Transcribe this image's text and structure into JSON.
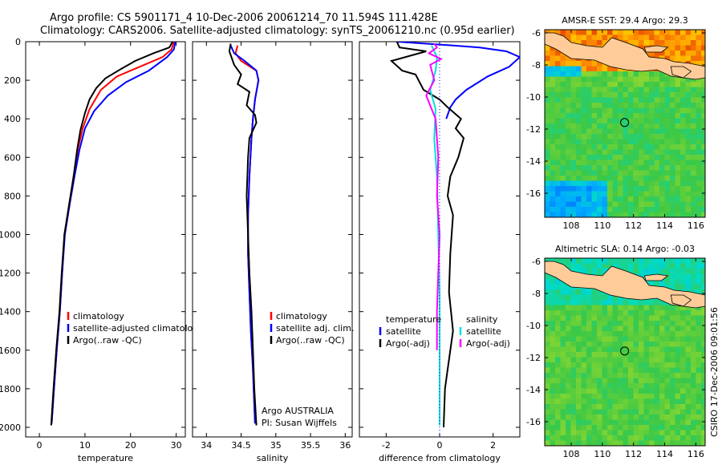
{
  "header": {
    "line1": "Argo profile: CS 5901171_4 10-Dec-2006 20061214_70 11.594S 111.428E",
    "line2": "Climatology: CARS2006. Satellite-adjusted climatology: synTS_20061210.nc (0.95d earlier)"
  },
  "colors": {
    "climatology": "#ff0000",
    "satellite": "#0000ff",
    "argo": "#000000",
    "salinity_satellite": "#00e0e0",
    "salinity_argo": "#ff00ff"
  },
  "chart_data": [
    {
      "id": "temperature",
      "type": "line",
      "xlabel": "temperature",
      "xlim": [
        -3,
        32
      ],
      "ylim": [
        0,
        2050
      ],
      "y_inverted": true,
      "xticks": [
        0,
        10,
        20,
        30
      ],
      "yticks": [
        0,
        200,
        400,
        600,
        800,
        1000,
        1200,
        1400,
        1600,
        1800,
        2000
      ],
      "series": [
        {
          "name": "climatology",
          "color": "#ff0000",
          "points": [
            [
              29.5,
              0
            ],
            [
              29,
              40
            ],
            [
              27,
              80
            ],
            [
              22,
              130
            ],
            [
              17,
              180
            ],
            [
              13.5,
              250
            ],
            [
              11,
              350
            ],
            [
              9.5,
              450
            ],
            [
              8.5,
              550
            ],
            [
              7.5,
              700
            ],
            [
              6.5,
              850
            ],
            [
              5.5,
              1000
            ],
            [
              5,
              1200
            ],
            [
              4.5,
              1400
            ],
            [
              3.8,
              1600
            ],
            [
              3.2,
              1800
            ],
            [
              2.7,
              1980
            ]
          ]
        },
        {
          "name": "satellite-adjusted climatology",
          "color": "#0000ff",
          "points": [
            [
              29.8,
              0
            ],
            [
              29.5,
              40
            ],
            [
              28,
              80
            ],
            [
              24,
              150
            ],
            [
              19,
              210
            ],
            [
              15,
              280
            ],
            [
              12,
              360
            ],
            [
              10,
              450
            ],
            [
              8.8,
              560
            ],
            [
              7.7,
              700
            ],
            [
              6.6,
              850
            ],
            [
              5.6,
              1000
            ],
            [
              5,
              1200
            ],
            [
              4.5,
              1400
            ],
            [
              3.8,
              1600
            ],
            [
              3.2,
              1800
            ],
            [
              2.7,
              1980
            ]
          ]
        },
        {
          "name": "Argo(..raw -QC)",
          "color": "#000000",
          "points": [
            [
              29.2,
              0
            ],
            [
              28.5,
              30
            ],
            [
              25,
              60
            ],
            [
              21,
              100
            ],
            [
              18,
              140
            ],
            [
              14.5,
              190
            ],
            [
              12.5,
              240
            ],
            [
              11,
              300
            ],
            [
              10,
              370
            ],
            [
              9,
              460
            ],
            [
              8.3,
              560
            ],
            [
              7.5,
              700
            ],
            [
              6.5,
              850
            ],
            [
              5.5,
              1000
            ],
            [
              4.9,
              1200
            ],
            [
              4.4,
              1400
            ],
            [
              3.7,
              1600
            ],
            [
              3.1,
              1800
            ],
            [
              2.6,
              1990
            ]
          ]
        }
      ],
      "legend": {
        "position": "lower-right",
        "entries": [
          "climatology",
          "satellite-adjusted climatology",
          "Argo(..raw -QC)"
        ]
      }
    },
    {
      "id": "salinity",
      "type": "line",
      "xlabel": "salinity",
      "xlim": [
        33.8,
        36.1
      ],
      "ylim": [
        0,
        2050
      ],
      "y_inverted": true,
      "xticks": [
        34,
        34.5,
        35,
        35.5,
        36
      ],
      "series": [
        {
          "name": "climatology",
          "color": "#ff0000",
          "points": [
            [
              34.45,
              20
            ],
            [
              34.42,
              60
            ],
            [
              34.5,
              100
            ],
            [
              34.72,
              150
            ],
            [
              34.75,
              200
            ],
            [
              34.7,
              300
            ],
            [
              34.67,
              400
            ],
            [
              34.65,
              500
            ],
            [
              34.62,
              700
            ],
            [
              34.6,
              900
            ],
            [
              34.6,
              1100
            ],
            [
              34.62,
              1300
            ],
            [
              34.64,
              1500
            ],
            [
              34.67,
              1700
            ],
            [
              34.7,
              1980
            ]
          ]
        },
        {
          "name": "satellite adj. clim.",
          "color": "#0000ff",
          "points": [
            [
              34.35,
              20
            ],
            [
              34.4,
              60
            ],
            [
              34.55,
              100
            ],
            [
              34.72,
              150
            ],
            [
              34.75,
              200
            ],
            [
              34.7,
              300
            ],
            [
              34.67,
              400
            ],
            [
              34.65,
              500
            ],
            [
              34.62,
              700
            ],
            [
              34.6,
              900
            ],
            [
              34.6,
              1100
            ],
            [
              34.62,
              1300
            ],
            [
              34.64,
              1500
            ],
            [
              34.67,
              1700
            ],
            [
              34.7,
              1980
            ]
          ]
        },
        {
          "name": "Argo(..raw -QC)",
          "color": "#000000",
          "points": [
            [
              34.35,
              10
            ],
            [
              34.33,
              50
            ],
            [
              34.4,
              120
            ],
            [
              34.5,
              170
            ],
            [
              34.45,
              220
            ],
            [
              34.62,
              260
            ],
            [
              34.58,
              330
            ],
            [
              34.7,
              380
            ],
            [
              34.72,
              420
            ],
            [
              34.62,
              500
            ],
            [
              34.6,
              600
            ],
            [
              34.58,
              800
            ],
            [
              34.6,
              1000
            ],
            [
              34.62,
              1200
            ],
            [
              34.65,
              1400
            ],
            [
              34.67,
              1600
            ],
            [
              34.69,
              1800
            ],
            [
              34.72,
              1990
            ]
          ]
        }
      ],
      "legend": {
        "position": "lower-right",
        "entries": [
          "climatology",
          "satellite adj. clim.",
          "Argo(..raw -QC)"
        ]
      },
      "annotation": {
        "line1": "Argo AUSTRALIA",
        "line2": "PI: Susan Wijffels"
      }
    },
    {
      "id": "difference",
      "type": "line",
      "xlabel": "difference from climatology",
      "xlim": [
        -3,
        3
      ],
      "ylim": [
        0,
        2050
      ],
      "y_inverted": true,
      "xticks": [
        -2,
        0,
        2
      ],
      "series": [
        {
          "name": "temperature satellite",
          "color": "#0000ff",
          "points": [
            [
              -1.6,
              0
            ],
            [
              0.5,
              20
            ],
            [
              1.5,
              30
            ],
            [
              2.5,
              50
            ],
            [
              3.0,
              80
            ],
            [
              2.6,
              130
            ],
            [
              1.8,
              180
            ],
            [
              1.0,
              250
            ],
            [
              0.6,
              300
            ],
            [
              0.4,
              340
            ],
            [
              0.25,
              400
            ]
          ]
        },
        {
          "name": "temperature Argo(-adj)",
          "color": "#000000",
          "points": [
            [
              -1.6,
              0
            ],
            [
              -1.5,
              30
            ],
            [
              -0.5,
              50
            ],
            [
              -1.8,
              100
            ],
            [
              -1.4,
              150
            ],
            [
              -0.9,
              170
            ],
            [
              -0.6,
              250
            ],
            [
              0,
              300
            ],
            [
              0.3,
              340
            ],
            [
              0.8,
              400
            ],
            [
              0.6,
              450
            ],
            [
              0.9,
              500
            ],
            [
              0.7,
              600
            ],
            [
              0.4,
              700
            ],
            [
              0.3,
              800
            ],
            [
              0.5,
              900
            ],
            [
              0.4,
              1100
            ],
            [
              0.35,
              1300
            ],
            [
              0.5,
              1500
            ],
            [
              0.3,
              1700
            ],
            [
              0.2,
              1800
            ],
            [
              0.15,
              2000
            ]
          ]
        },
        {
          "name": "salinity satellite",
          "color": "#00e0e0",
          "points": [
            [
              -0.3,
              20
            ],
            [
              -0.1,
              80
            ],
            [
              -0.15,
              150
            ],
            [
              -0.35,
              250
            ],
            [
              -0.15,
              350
            ],
            [
              -0.2,
              500
            ],
            [
              -0.1,
              700
            ],
            [
              -0.05,
              1000
            ],
            [
              0,
              1300
            ],
            [
              0,
              1600
            ],
            [
              0,
              1990
            ]
          ]
        },
        {
          "name": "salinity Argo(-adj)",
          "color": "#ff00ff",
          "points": [
            [
              -0.2,
              10
            ],
            [
              -0.1,
              30
            ],
            [
              -0.4,
              60
            ],
            [
              0.05,
              90
            ],
            [
              -0.35,
              120
            ],
            [
              -0.2,
              200
            ],
            [
              -0.5,
              280
            ],
            [
              -0.15,
              400
            ],
            [
              -0.05,
              600
            ],
            [
              -0.1,
              800
            ],
            [
              0,
              1000
            ],
            [
              -0.05,
              1200
            ],
            [
              -0.1,
              1400
            ],
            [
              -0.1,
              1600
            ]
          ]
        }
      ],
      "legend": {
        "temperature_heading": "temperature",
        "salinity_heading": "salinity",
        "entries": [
          "satellite",
          "Argo(-adj)",
          "satellite",
          "Argo(-adj)"
        ]
      }
    },
    {
      "id": "sst-map",
      "type": "heatmap",
      "title": "AMSR-E SST: 29.4 Argo: 29.3",
      "xlim": [
        106.3,
        116.6
      ],
      "ylim": [
        -17.5,
        -5.8
      ],
      "xticks": [
        108,
        110,
        112,
        114,
        116
      ],
      "yticks": [
        -6,
        -8,
        -10,
        -12,
        -14,
        -16
      ],
      "marker": {
        "lon": 111.43,
        "lat": -11.59
      }
    },
    {
      "id": "sla-map",
      "type": "heatmap",
      "title": "Altimetric SLA: 0.14 Argo: -0.03",
      "xlim": [
        106.3,
        116.6
      ],
      "ylim": [
        -17.5,
        -5.8
      ],
      "xticks": [
        108,
        110,
        112,
        114,
        116
      ],
      "yticks": [
        -6,
        -8,
        -10,
        -12,
        -14,
        -16
      ],
      "marker": {
        "lon": 111.43,
        "lat": -11.59
      }
    }
  ],
  "footer": {
    "stamp": "CSIRO 17-Dec-2006 09:01:56"
  }
}
